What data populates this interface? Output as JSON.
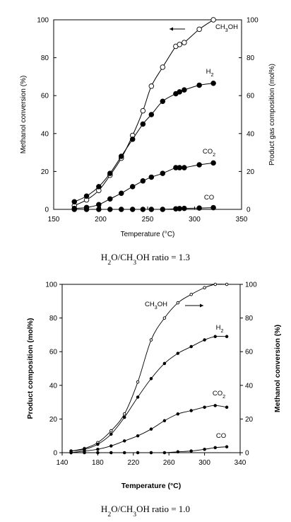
{
  "chart_data": [
    {
      "type": "line",
      "xlabel": "Temperature (°C)",
      "ylabel_left": "Methanol conversion (%)",
      "ylabel_right": "Product gas composition (mol%)",
      "xlim": [
        150,
        350
      ],
      "ylim": [
        0,
        100
      ],
      "xticks": [
        "150",
        "200",
        "250",
        "300",
        "350"
      ],
      "yticks": [
        "0",
        "20",
        "40",
        "60",
        "80",
        "100"
      ],
      "grid": false,
      "caption_parts": [
        [
          "H",
          ""
        ],
        [
          "2",
          "sub"
        ],
        [
          "O/CH",
          ""
        ],
        [
          "3",
          "sub"
        ],
        [
          "OH ratio = 1.3",
          ""
        ]
      ],
      "series": [
        {
          "name_parts": [
            [
              "CH",
              ""
            ],
            [
              "3",
              "sub"
            ],
            [
              "OH",
              ""
            ]
          ],
          "marker": "open",
          "axis": "left",
          "x": [
            172,
            185,
            198,
            210,
            222,
            234,
            245,
            254,
            266,
            280,
            284,
            289,
            305,
            320
          ],
          "y": [
            2,
            5,
            10,
            18,
            27,
            39,
            52,
            65,
            75,
            86,
            87,
            88,
            95,
            100
          ]
        },
        {
          "name_parts": [
            [
              "H",
              ""
            ],
            [
              "2",
              "sub"
            ]
          ],
          "marker": "filled",
          "axis": "right",
          "x": [
            172,
            185,
            198,
            210,
            222,
            234,
            245,
            254,
            266,
            280,
            284,
            289,
            305,
            320
          ],
          "y": [
            4,
            7,
            12,
            19,
            28,
            37,
            45,
            50,
            57,
            61,
            62,
            63,
            65.5,
            66.5
          ]
        },
        {
          "name_parts": [
            [
              "CO",
              ""
            ],
            [
              "2",
              "sub"
            ]
          ],
          "marker": "filled",
          "axis": "right",
          "x": [
            172,
            185,
            198,
            210,
            222,
            234,
            245,
            254,
            266,
            280,
            284,
            289,
            305,
            320
          ],
          "y": [
            0.5,
            1,
            2.5,
            5.5,
            8.5,
            12,
            15,
            17,
            19,
            22,
            22,
            22,
            23.5,
            24.5
          ]
        },
        {
          "name_parts": [
            [
              "CO",
              ""
            ]
          ],
          "marker": "filled",
          "axis": "right",
          "x": [
            172,
            185,
            198,
            210,
            222,
            234,
            245,
            254,
            266,
            280,
            284,
            289,
            305,
            320
          ],
          "y": [
            0,
            0,
            0,
            0,
            0,
            0,
            0,
            0,
            0,
            0.3,
            0.4,
            0.5,
            0.7,
            0.9
          ]
        }
      ]
    },
    {
      "type": "line",
      "xlabel": "Temperature (°C)",
      "ylabel_left": "Product composition (mol%)",
      "ylabel_right": "Methanol conversion (%)",
      "xlim": [
        140,
        340
      ],
      "ylim": [
        0,
        100
      ],
      "xticks": [
        "140",
        "180",
        "220",
        "260",
        "300",
        "340"
      ],
      "yticks": [
        "0",
        "20",
        "40",
        "60",
        "80",
        "100"
      ],
      "grid": false,
      "caption_parts": [
        [
          "H",
          ""
        ],
        [
          "2",
          "sub"
        ],
        [
          "O/CH",
          ""
        ],
        [
          "3",
          "sub"
        ],
        [
          "OH ratio = 1.0",
          ""
        ]
      ],
      "series": [
        {
          "name_parts": [
            [
              "CH",
              ""
            ],
            [
              "3",
              "sub"
            ],
            [
              "OH",
              ""
            ]
          ],
          "marker": "open",
          "axis": "right",
          "x": [
            150,
            165,
            180,
            195,
            210,
            225,
            240,
            255,
            270,
            285,
            300,
            312,
            325
          ],
          "y": [
            1,
            2.5,
            6,
            13,
            23,
            42,
            67,
            80,
            89,
            94,
            98,
            100,
            100
          ]
        },
        {
          "name_parts": [
            [
              "H",
              ""
            ],
            [
              "2",
              "sub"
            ]
          ],
          "marker": "filled",
          "axis": "left",
          "x": [
            150,
            165,
            180,
            195,
            210,
            225,
            240,
            255,
            270,
            285,
            300,
            312,
            325
          ],
          "y": [
            1,
            2,
            5,
            11,
            21,
            33,
            44,
            53,
            59,
            63,
            67,
            69,
            69
          ]
        },
        {
          "name_parts": [
            [
              "CO",
              ""
            ],
            [
              "2",
              "sub"
            ]
          ],
          "marker": "filled",
          "axis": "left",
          "x": [
            150,
            165,
            180,
            195,
            210,
            225,
            240,
            255,
            270,
            285,
            300,
            312,
            325
          ],
          "y": [
            0,
            1,
            2,
            4,
            7,
            10,
            14,
            19,
            23,
            25,
            27,
            28,
            27
          ]
        },
        {
          "name_parts": [
            [
              "CO",
              ""
            ]
          ],
          "marker": "filled",
          "axis": "left",
          "x": [
            150,
            165,
            180,
            195,
            210,
            225,
            240,
            255,
            270,
            285,
            300,
            312,
            325
          ],
          "y": [
            0,
            0,
            0,
            0,
            0,
            0,
            0,
            0,
            0.5,
            1,
            2,
            3,
            3.5
          ]
        }
      ]
    }
  ]
}
